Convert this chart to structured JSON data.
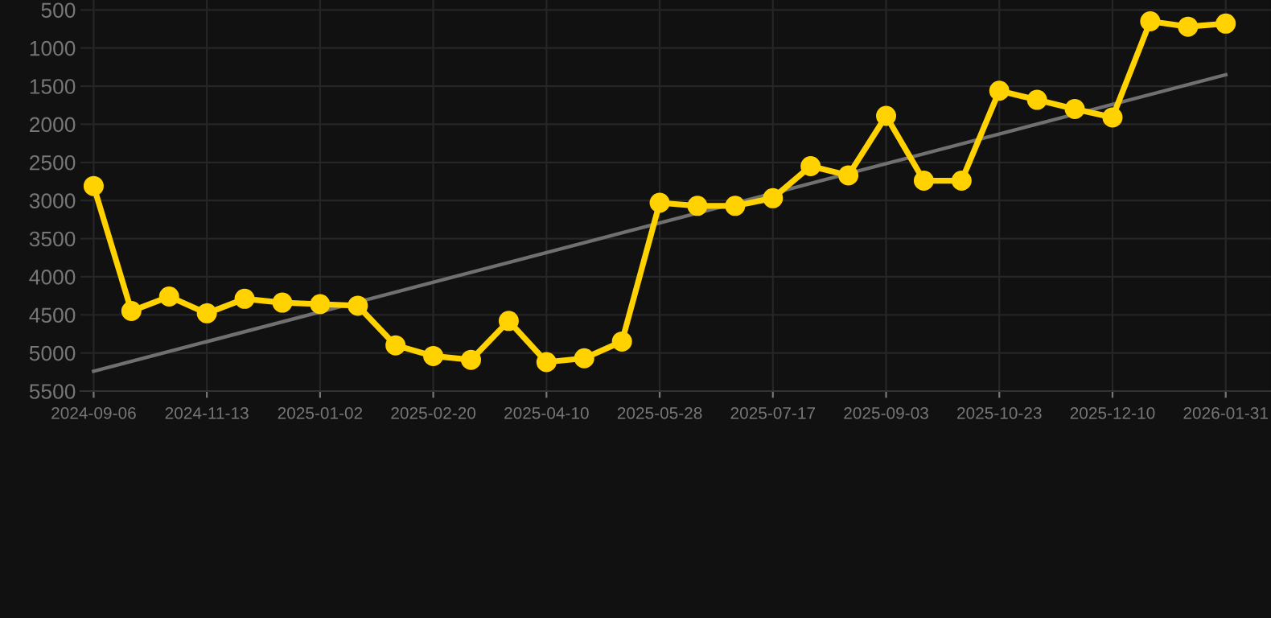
{
  "chart_data": {
    "type": "line",
    "categories": [
      "2024-09-06",
      null,
      null,
      "2024-11-13",
      null,
      null,
      "2025-01-02",
      null,
      null,
      "2025-02-20",
      null,
      null,
      "2025-04-10",
      null,
      null,
      "2025-05-28",
      null,
      null,
      "2025-07-17",
      null,
      null,
      "2025-09-03",
      null,
      null,
      "2025-10-23",
      null,
      null,
      "2025-12-10",
      null,
      null,
      "2026-01-31"
    ],
    "series": [
      {
        "color": "#ffd200",
        "marker": "circle",
        "values": [
          2810,
          4450,
          4260,
          4480,
          4290,
          4340,
          4360,
          4380,
          4900,
          5040,
          5090,
          4580,
          5120,
          5070,
          4850,
          3030,
          3070,
          3070,
          2970,
          2550,
          2670,
          1890,
          2740,
          2740,
          1560,
          1680,
          1800,
          1910,
          650,
          720,
          680
        ]
      },
      {
        "type": "line",
        "color": "#707070",
        "marker": "none",
        "values": [
          5240,
          null,
          null,
          null,
          null,
          null,
          null,
          null,
          null,
          null,
          null,
          null,
          null,
          null,
          null,
          null,
          null,
          null,
          null,
          null,
          null,
          null,
          null,
          null,
          null,
          null,
          null,
          null,
          null,
          null,
          1350
        ]
      }
    ],
    "ylim": [
      5500,
      370
    ],
    "yticks": [
      500,
      1000,
      1500,
      2000,
      2500,
      3000,
      3500,
      4000,
      4500,
      5000,
      5500
    ],
    "grid": true,
    "line_style": "solid"
  }
}
